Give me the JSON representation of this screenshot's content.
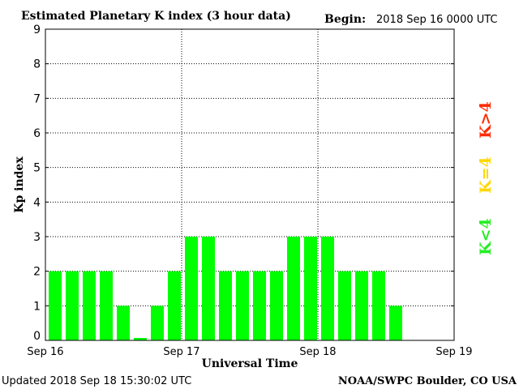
{
  "title": "Estimated Planetary K index (3 hour data)",
  "begin_label": "Begin:",
  "begin_value": "2018 Sep 16 0000 UTC",
  "updated_text": "Updated 2018 Sep 18 15:30:02 UTC",
  "credit_text": "NOAA/SWPC Boulder, CO USA",
  "legend": [
    {
      "text": "K>4",
      "color": "#ff2a00"
    },
    {
      "text": "K=4",
      "color": "#ffd700"
    },
    {
      "text": "K<4",
      "color": "#22ee22"
    }
  ],
  "chart_data": {
    "type": "bar",
    "title": "Estimated Planetary K index (3 hour data)",
    "xlabel": "Universal Time",
    "ylabel": "Kp index",
    "ylim": [
      0,
      9
    ],
    "yticks": [
      "0",
      "1",
      "2",
      "3",
      "4",
      "5",
      "6",
      "7",
      "8",
      "9"
    ],
    "xticks": [
      "Sep 16",
      "Sep 17",
      "Sep 18",
      "Sep 19"
    ],
    "bar_color": "#00ff00",
    "grid": "dotted",
    "values": [
      2,
      2,
      2,
      2,
      1,
      0.07,
      1,
      2,
      3,
      3,
      2,
      2,
      2,
      2,
      3,
      3,
      3,
      2,
      2,
      2,
      1
    ]
  }
}
